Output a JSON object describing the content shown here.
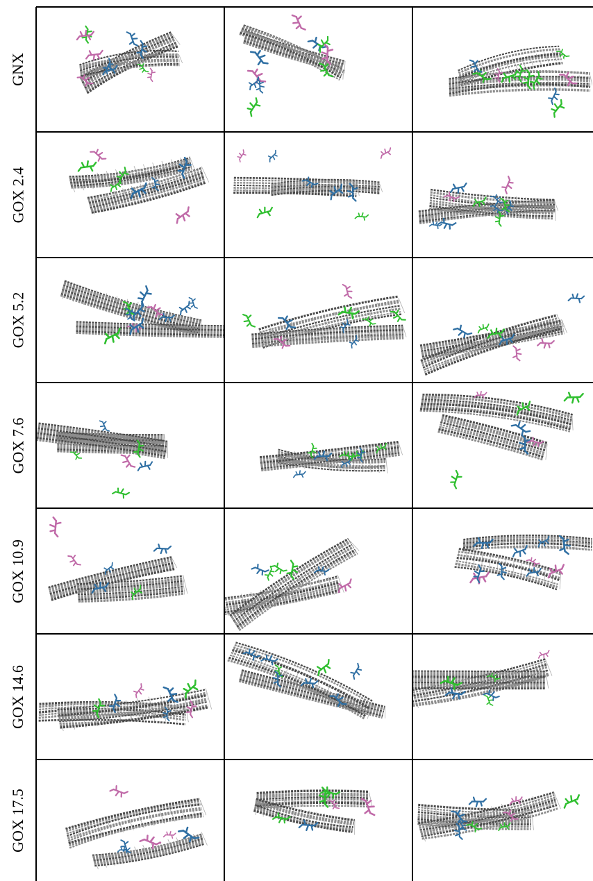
{
  "figure": {
    "row_labels": [
      "GNX",
      "GOX 2.4",
      "GOX 5.2",
      "GOX 7.6",
      "GOX 10.9",
      "GOX 14.6",
      "GOX 17.5"
    ],
    "columns_per_row": 3,
    "colors": {
      "sheet_carbon": "#8c8c8c",
      "sheet_dark": "#4a4a4a",
      "molecule_blue": "#2f6fa3",
      "molecule_pink": "#c06aa8",
      "molecule_green": "#2fbf2f",
      "border": "#000000"
    }
  }
}
